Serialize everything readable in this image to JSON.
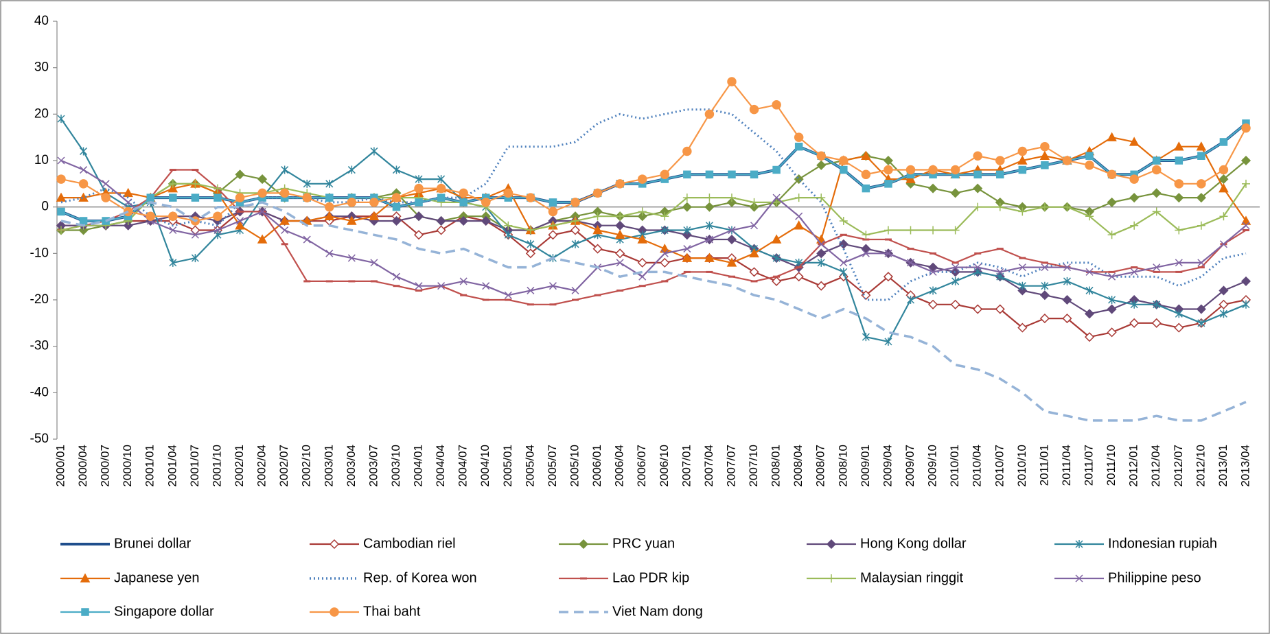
{
  "chart_data": {
    "type": "line",
    "categories": [
      "2000/01",
      "2000/04",
      "2000/07",
      "2000/10",
      "2001/01",
      "2001/04",
      "2001/07",
      "2001/10",
      "2002/01",
      "2002/04",
      "2002/07",
      "2002/10",
      "2003/01",
      "2003/04",
      "2003/07",
      "2003/10",
      "2004/01",
      "2004/04",
      "2004/07",
      "2004/10",
      "2005/01",
      "2005/04",
      "2005/07",
      "2005/10",
      "2006/01",
      "2006/04",
      "2006/07",
      "2006/10",
      "2007/01",
      "2007/04",
      "2007/07",
      "2007/10",
      "2008/01",
      "2008/04",
      "2008/07",
      "2008/10",
      "2009/01",
      "2009/04",
      "2009/07",
      "2009/10",
      "2010/01",
      "2010/04",
      "2010/07",
      "2010/10",
      "2011/01",
      "2011/04",
      "2011/07",
      "2011/10",
      "2012/01",
      "2012/04",
      "2012/07",
      "2012/10",
      "2013/01",
      "2013/04"
    ],
    "ylim": [
      -50,
      40
    ],
    "yticks": [
      -50,
      -40,
      -30,
      -20,
      -10,
      0,
      10,
      20,
      30,
      40
    ],
    "series": [
      {
        "name": "Brunei dollar",
        "color": "#1f4e8c",
        "width": 4,
        "values": [
          -1,
          -3,
          -3,
          -2,
          2,
          2,
          2,
          2,
          1,
          2,
          2,
          2,
          2,
          2,
          2,
          0,
          1,
          2,
          1,
          2,
          2,
          2,
          1,
          1,
          3,
          5,
          5,
          6,
          7,
          7,
          7,
          7,
          8,
          13,
          11,
          8,
          4,
          5,
          7,
          7,
          7,
          7,
          7,
          8,
          9,
          10,
          11,
          7,
          7,
          10,
          10,
          11,
          14,
          18
        ]
      },
      {
        "name": "Cambodian riel",
        "color": "#a93a36",
        "marker": "diamond-open",
        "values": [
          -4,
          -4,
          -4,
          -3,
          -3,
          -3,
          -5,
          -5,
          -1,
          -1,
          -3,
          -3,
          -3,
          -2,
          -2,
          -2,
          -6,
          -5,
          -2,
          -3,
          -6,
          -10,
          -6,
          -5,
          -9,
          -10,
          -12,
          -12,
          -11,
          -11,
          -11,
          -14,
          -16,
          -15,
          -17,
          -15,
          -19,
          -15,
          -19,
          -21,
          -21,
          -22,
          -22,
          -26,
          -24,
          -24,
          -28,
          -27,
          -25,
          -25,
          -26,
          -25,
          -21,
          -20
        ]
      },
      {
        "name": "PRC yuan",
        "color": "#77933c",
        "marker": "diamond",
        "values": [
          -5,
          -5,
          -4,
          -3,
          2,
          5,
          5,
          3,
          7,
          6,
          2,
          2,
          2,
          2,
          2,
          3,
          -2,
          -3,
          -2,
          -2,
          -5,
          -5,
          -3,
          -2,
          -1,
          -2,
          -2,
          -1,
          0,
          0,
          1,
          0,
          1,
          6,
          9,
          10,
          11,
          10,
          5,
          4,
          3,
          4,
          1,
          0,
          0,
          0,
          -1,
          1,
          2,
          3,
          2,
          2,
          6,
          10
        ]
      },
      {
        "name": "Hong Kong dollar",
        "color": "#60497a",
        "marker": "diamond",
        "values": [
          -4,
          -4,
          -4,
          -4,
          -3,
          -2,
          -2,
          -3,
          -1,
          -1,
          -3,
          -3,
          -2,
          -2,
          -3,
          -3,
          -2,
          -3,
          -3,
          -3,
          -5,
          -5,
          -3,
          -3,
          -4,
          -4,
          -5,
          -5,
          -6,
          -7,
          -7,
          -9,
          -11,
          -13,
          -10,
          -8,
          -9,
          -10,
          -12,
          -13,
          -14,
          -14,
          -15,
          -18,
          -19,
          -20,
          -23,
          -22,
          -20,
          -21,
          -22,
          -22,
          -18,
          -16
        ]
      },
      {
        "name": "Indonesian rupiah",
        "color": "#31859c",
        "marker": "asterisk",
        "values": [
          19,
          12,
          3,
          0,
          1,
          -12,
          -11,
          -6,
          -5,
          2,
          8,
          5,
          5,
          8,
          12,
          8,
          6,
          6,
          1,
          0,
          -6,
          -8,
          -11,
          -8,
          -6,
          -7,
          -6,
          -5,
          -5,
          -4,
          -5,
          -9,
          -11,
          -12,
          -12,
          -14,
          -28,
          -29,
          -20,
          -18,
          -16,
          -14,
          -15,
          -17,
          -17,
          -16,
          -18,
          -20,
          -21,
          -21,
          -23,
          -25,
          -23,
          -21
        ]
      },
      {
        "name": "Japanese yen",
        "color": "#e46c0a",
        "marker": "triangle",
        "values": [
          2,
          2,
          3,
          3,
          2,
          4,
          5,
          3,
          -4,
          -7,
          -3,
          -3,
          -2,
          -3,
          -2,
          2,
          3,
          4,
          2,
          2,
          4,
          -5,
          -4,
          -3,
          -5,
          -6,
          -7,
          -9,
          -11,
          -11,
          -12,
          -10,
          -7,
          -4,
          -7,
          10,
          11,
          6,
          6,
          8,
          7,
          8,
          8,
          10,
          11,
          10,
          12,
          15,
          14,
          10,
          13,
          13,
          4,
          -3
        ]
      },
      {
        "name": "Rep. of Korea won",
        "color": "#4f81bd",
        "dash": "dotted",
        "values": [
          1,
          2,
          4,
          2,
          -2,
          -4,
          -3,
          -4,
          1,
          2,
          2,
          2,
          1,
          1,
          2,
          1,
          1,
          2,
          2,
          5,
          13,
          13,
          13,
          14,
          18,
          20,
          19,
          20,
          21,
          21,
          20,
          16,
          12,
          6,
          1,
          -9,
          -20,
          -20,
          -16,
          -14,
          -14,
          -12,
          -13,
          -15,
          -13,
          -12,
          -12,
          -15,
          -15,
          -15,
          -17,
          -15,
          -11,
          -10
        ]
      },
      {
        "name": "Lao PDR kip",
        "color": "#c0504d",
        "marker": "dash",
        "values": [
          -5,
          -4,
          -3,
          -1,
          2,
          8,
          8,
          4,
          -1,
          -1,
          -8,
          -16,
          -16,
          -16,
          -16,
          -17,
          -18,
          -17,
          -19,
          -20,
          -20,
          -21,
          -21,
          -20,
          -19,
          -18,
          -17,
          -16,
          -14,
          -14,
          -15,
          -16,
          -15,
          -13,
          -8,
          -6,
          -7,
          -7,
          -9,
          -10,
          -12,
          -10,
          -9,
          -11,
          -12,
          -13,
          -14,
          -14,
          -13,
          -14,
          -14,
          -13,
          -8,
          -5
        ]
      },
      {
        "name": "Malaysian ringgit",
        "color": "#9bbb59",
        "marker": "plus",
        "values": [
          -5,
          -4,
          -4,
          -3,
          2,
          5,
          5,
          4,
          3,
          3,
          4,
          3,
          2,
          2,
          2,
          2,
          2,
          1,
          1,
          0,
          -4,
          -5,
          -4,
          -3,
          -2,
          -2,
          -1,
          -2,
          2,
          2,
          2,
          1,
          1,
          2,
          2,
          -3,
          -6,
          -5,
          -5,
          -5,
          -5,
          0,
          0,
          -1,
          0,
          0,
          -2,
          -6,
          -4,
          -1,
          -5,
          -4,
          -2,
          5
        ]
      },
      {
        "name": "Philippine peso",
        "color": "#8064a2",
        "marker": "x",
        "values": [
          10,
          8,
          5,
          1,
          -3,
          -5,
          -6,
          -5,
          -3,
          -1,
          -5,
          -7,
          -10,
          -11,
          -12,
          -15,
          -17,
          -17,
          -16,
          -17,
          -19,
          -18,
          -17,
          -18,
          -13,
          -12,
          -15,
          -10,
          -9,
          -7,
          -5,
          -4,
          2,
          -2,
          -8,
          -12,
          -10,
          -10,
          -12,
          -14,
          -13,
          -13,
          -14,
          -13,
          -13,
          -13,
          -14,
          -15,
          -14,
          -13,
          -12,
          -12,
          -8,
          -4
        ]
      },
      {
        "name": "Singapore dollar",
        "color": "#4bacc6",
        "marker": "square",
        "values": [
          -1,
          -3,
          -3,
          -2,
          2,
          2,
          2,
          2,
          1,
          2,
          2,
          2,
          2,
          2,
          2,
          0,
          1,
          2,
          1,
          2,
          2,
          2,
          1,
          1,
          3,
          5,
          5,
          6,
          7,
          7,
          7,
          7,
          8,
          13,
          11,
          8,
          4,
          5,
          7,
          7,
          7,
          7,
          7,
          8,
          9,
          10,
          11,
          7,
          7,
          10,
          10,
          11,
          14,
          18
        ]
      },
      {
        "name": "Thai baht",
        "color": "#f79646",
        "marker": "circle",
        "values": [
          6,
          5,
          2,
          -1,
          -2,
          -2,
          -3,
          -2,
          2,
          3,
          3,
          2,
          0,
          1,
          1,
          2,
          4,
          4,
          3,
          1,
          3,
          2,
          -1,
          1,
          3,
          5,
          6,
          7,
          12,
          20,
          27,
          21,
          22,
          15,
          11,
          10,
          7,
          8,
          8,
          8,
          8,
          11,
          10,
          12,
          13,
          10,
          9,
          7,
          6,
          8,
          5,
          5,
          8,
          17
        ]
      },
      {
        "name": "Viet Nam dong",
        "color": "#95b3d7",
        "dash": "dashed",
        "values": [
          -3,
          -4,
          -3,
          -1,
          1,
          0,
          -3,
          0,
          0,
          1,
          -1,
          -4,
          -4,
          -5,
          -6,
          -7,
          -9,
          -10,
          -9,
          -11,
          -13,
          -13,
          -11,
          -12,
          -13,
          -15,
          -14,
          -14,
          -15,
          -16,
          -17,
          -19,
          -20,
          -22,
          -24,
          -22,
          -24,
          -27,
          -28,
          -30,
          -34,
          -35,
          -37,
          -40,
          -44,
          -45,
          -46,
          -46,
          -46,
          -45,
          -46,
          -46,
          -44,
          -42
        ]
      }
    ]
  }
}
